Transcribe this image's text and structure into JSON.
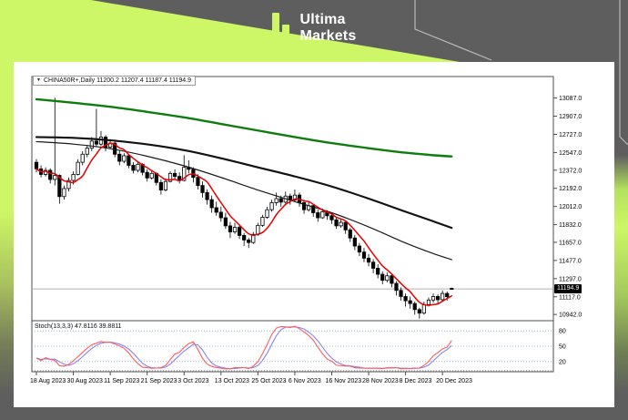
{
  "header": {
    "logo_line1": "Ultima",
    "logo_line2": "Markets",
    "brand_lime": "#cdf766",
    "brand_gray": "#5e5e5e"
  },
  "chart": {
    "dropdown_icon": "▼",
    "symbol_line": "CHINA50R+,Daily  11200.2 11207.4 11187.4 11194.9",
    "stoch_label": "Stoch(13,3,3) 47.8116 39.8811",
    "current_price": "11194.9",
    "current_price_value": 11194.9,
    "y_axis_labels": [
      "13087.0",
      "12907.0",
      "12727.0",
      "12547.0",
      "12372.0",
      "12192.0",
      "12012.0",
      "11832.0",
      "11657.0",
      "11477.0",
      "11297.0",
      "11117.0",
      "10942.0"
    ],
    "x_axis_ticks": [
      {
        "label": "18 Aug 2023",
        "i": 0
      },
      {
        "label": "30 Aug 2023",
        "i": 8
      },
      {
        "label": "11 Sep 2023",
        "i": 16
      },
      {
        "label": "21 Sep 2023",
        "i": 24
      },
      {
        "label": "3 Oct 2023",
        "i": 32
      },
      {
        "label": "13 Oct 2023",
        "i": 40
      },
      {
        "label": "25 Oct 2023",
        "i": 48
      },
      {
        "label": "6 Nov 2023",
        "i": 56
      },
      {
        "label": "16 Nov 2023",
        "i": 64
      },
      {
        "label": "28 Nov 2023",
        "i": 72
      },
      {
        "label": "8 Dec 2023",
        "i": 80
      },
      {
        "label": "20 Dec 2023",
        "i": 88
      }
    ],
    "colors": {
      "frame": "#4d4d4d",
      "candle": "#000000",
      "bull_fill": "#ffffff",
      "bear_fill": "#000000",
      "price_line": "#b3b3b3",
      "tag_bg": "#000000",
      "tag_text": "#ffffff",
      "level_dotted": "#9db8d2",
      "axis_text": "#000000"
    }
  },
  "chart_data": {
    "type": "candlestick",
    "title": "CHINA50R+ Daily",
    "ylim": [
      10880,
      13300
    ],
    "ohlc": [
      [
        12450,
        12480,
        12350,
        12385
      ],
      [
        12385,
        12420,
        12300,
        12330
      ],
      [
        12330,
        12400,
        12310,
        12370
      ],
      [
        12370,
        12390,
        12240,
        12280
      ],
      [
        12280,
        13090,
        12220,
        12320
      ],
      [
        12320,
        12330,
        12040,
        12110
      ],
      [
        12110,
        12220,
        12080,
        12190
      ],
      [
        12190,
        12300,
        12160,
        12270
      ],
      [
        12270,
        12360,
        12230,
        12330
      ],
      [
        12330,
        12480,
        12320,
        12450
      ],
      [
        12450,
        12560,
        12420,
        12530
      ],
      [
        12530,
        12620,
        12500,
        12590
      ],
      [
        12590,
        12700,
        12560,
        12660
      ],
      [
        12660,
        12980,
        12600,
        12630
      ],
      [
        12630,
        12760,
        12610,
        12700
      ],
      [
        12700,
        12720,
        12560,
        12600
      ],
      [
        12600,
        12680,
        12580,
        12640
      ],
      [
        12640,
        12660,
        12500,
        12530
      ],
      [
        12530,
        12570,
        12420,
        12460
      ],
      [
        12460,
        12540,
        12440,
        12515
      ],
      [
        12515,
        12530,
        12390,
        12420
      ],
      [
        12420,
        12450,
        12340,
        12370
      ],
      [
        12370,
        12460,
        12350,
        12430
      ],
      [
        12430,
        12440,
        12320,
        12350
      ],
      [
        12350,
        12380,
        12260,
        12295
      ],
      [
        12295,
        12370,
        12280,
        12340
      ],
      [
        12340,
        12350,
        12220,
        12250
      ],
      [
        12250,
        12280,
        12130,
        12175
      ],
      [
        12175,
        12290,
        12160,
        12260
      ],
      [
        12260,
        12360,
        12250,
        12340
      ],
      [
        12340,
        12380,
        12280,
        12310
      ],
      [
        12310,
        12350,
        12240,
        12270
      ],
      [
        12270,
        12520,
        12260,
        12400
      ],
      [
        12400,
        12470,
        12340,
        12380
      ],
      [
        12380,
        12400,
        12250,
        12300
      ],
      [
        12300,
        12330,
        12180,
        12220
      ],
      [
        12220,
        12260,
        12100,
        12150
      ],
      [
        12150,
        12180,
        12030,
        12080
      ],
      [
        12080,
        12120,
        11950,
        12000
      ],
      [
        12000,
        12060,
        11920,
        11955
      ],
      [
        11955,
        12010,
        11860,
        11900
      ],
      [
        11900,
        11950,
        11790,
        11820
      ],
      [
        11820,
        11860,
        11700,
        11760
      ],
      [
        11760,
        11850,
        11740,
        11805
      ],
      [
        11805,
        11820,
        11690,
        11725
      ],
      [
        11725,
        11750,
        11620,
        11680
      ],
      [
        11680,
        11700,
        11600,
        11655
      ],
      [
        11655,
        11760,
        11640,
        11735
      ],
      [
        11735,
        11850,
        11720,
        11825
      ],
      [
        11825,
        11930,
        11810,
        11905
      ],
      [
        11905,
        12010,
        11890,
        11980
      ],
      [
        11980,
        12080,
        11960,
        12050
      ],
      [
        12050,
        12150,
        12020,
        12090
      ],
      [
        12090,
        12120,
        12010,
        12055
      ],
      [
        12055,
        12160,
        12040,
        12115
      ],
      [
        12115,
        12140,
        12030,
        12075
      ],
      [
        12075,
        12180,
        12060,
        12125
      ],
      [
        12125,
        12150,
        12010,
        12050
      ],
      [
        12050,
        12080,
        11940,
        11980
      ],
      [
        11980,
        12060,
        11960,
        12020
      ],
      [
        12020,
        12040,
        11910,
        11950
      ],
      [
        11950,
        11980,
        11860,
        11900
      ],
      [
        11900,
        11990,
        11890,
        11960
      ],
      [
        11960,
        11975,
        11880,
        11920
      ],
      [
        11920,
        11950,
        11840,
        11880
      ],
      [
        11880,
        11910,
        11790,
        11820
      ],
      [
        11820,
        11890,
        11800,
        11855
      ],
      [
        11855,
        11870,
        11740,
        11780
      ],
      [
        11780,
        11800,
        11660,
        11700
      ],
      [
        11700,
        11730,
        11580,
        11620
      ],
      [
        11620,
        11650,
        11520,
        11560
      ],
      [
        11560,
        11600,
        11460,
        11500
      ],
      [
        11500,
        11540,
        11420,
        11460
      ],
      [
        11460,
        11490,
        11350,
        11400
      ],
      [
        11400,
        11440,
        11300,
        11340
      ],
      [
        11340,
        11370,
        11240,
        11280
      ],
      [
        11280,
        11360,
        11260,
        11325
      ],
      [
        11325,
        11340,
        11210,
        11250
      ],
      [
        11250,
        11270,
        11130,
        11180
      ],
      [
        11180,
        11210,
        11080,
        11120
      ],
      [
        11120,
        11150,
        11020,
        11078
      ],
      [
        11078,
        11120,
        11000,
        11050
      ],
      [
        11050,
        11070,
        10940,
        10990
      ],
      [
        10990,
        11010,
        10900,
        10955
      ],
      [
        10955,
        11070,
        10940,
        11040
      ],
      [
        11040,
        11110,
        11020,
        11085
      ],
      [
        11085,
        11150,
        11060,
        11120
      ],
      [
        11120,
        11140,
        11040,
        11088
      ],
      [
        11088,
        11180,
        11070,
        11150
      ],
      [
        11150,
        11170,
        11080,
        11118
      ],
      [
        11200.2,
        11207.4,
        11187.4,
        11194.9
      ]
    ],
    "overlays": [
      {
        "name": "ma-long-green",
        "color": "#0d7d0d",
        "width": 2.4,
        "points": [
          [
            0,
            13075
          ],
          [
            8,
            13040
          ],
          [
            16,
            13000
          ],
          [
            24,
            12950
          ],
          [
            32,
            12895
          ],
          [
            40,
            12830
          ],
          [
            48,
            12765
          ],
          [
            56,
            12700
          ],
          [
            64,
            12640
          ],
          [
            72,
            12590
          ],
          [
            80,
            12545
          ],
          [
            86,
            12520
          ],
          [
            90,
            12508
          ]
        ]
      },
      {
        "name": "ma-slow-black",
        "color": "#111111",
        "width": 2.1,
        "points": [
          [
            0,
            12700
          ],
          [
            8,
            12692
          ],
          [
            16,
            12668
          ],
          [
            24,
            12628
          ],
          [
            32,
            12570
          ],
          [
            40,
            12490
          ],
          [
            48,
            12400
          ],
          [
            56,
            12310
          ],
          [
            64,
            12210
          ],
          [
            72,
            12090
          ],
          [
            80,
            11960
          ],
          [
            86,
            11865
          ],
          [
            90,
            11800
          ]
        ]
      },
      {
        "name": "ma-fast-black",
        "color": "#1a1a1a",
        "width": 1.2,
        "points": [
          [
            0,
            12655
          ],
          [
            8,
            12630
          ],
          [
            16,
            12585
          ],
          [
            24,
            12510
          ],
          [
            32,
            12415
          ],
          [
            40,
            12300
          ],
          [
            48,
            12175
          ],
          [
            56,
            12060
          ],
          [
            64,
            11950
          ],
          [
            72,
            11810
          ],
          [
            80,
            11650
          ],
          [
            86,
            11545
          ],
          [
            90,
            11485
          ]
        ]
      },
      {
        "name": "ma-short-red",
        "color": "#e60000",
        "width": 1.5,
        "sma_period": 6
      }
    ],
    "indicator": {
      "type": "stochastic",
      "label": "Stoch(13,3,3)",
      "k_period": 13,
      "slowing": 3,
      "d_period": 3,
      "k_value": "47.8116",
      "d_value": "39.8811",
      "levels": [
        80,
        50,
        20
      ],
      "k_color": "#ff5c5c",
      "d_color": "#8585f0"
    }
  }
}
